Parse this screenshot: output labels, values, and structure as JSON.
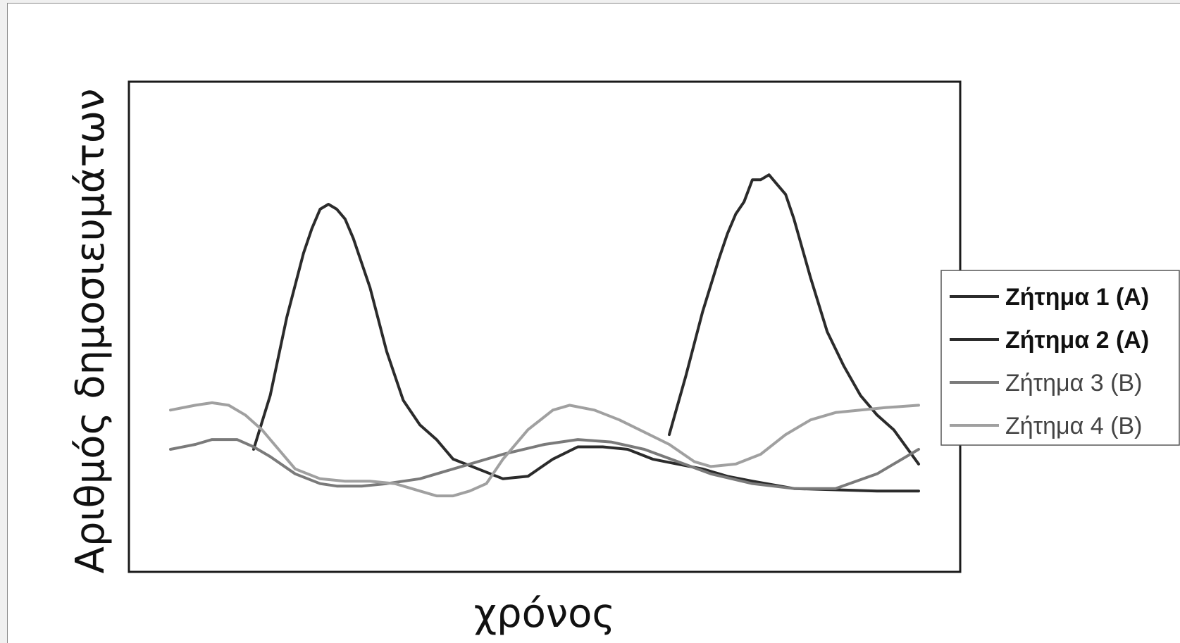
{
  "chart_data": {
    "type": "line",
    "title": "",
    "xlabel": "χρόνος",
    "ylabel": "Αριθμός δημοσιευμάτων",
    "xlim": [
      0,
      100
    ],
    "ylim": [
      0,
      100
    ],
    "grid": false,
    "legend_position": "right",
    "series": [
      {
        "name": "Ζήτημα 1 (A)",
        "color": "#2b2b2b",
        "points": [
          [
            15,
            25
          ],
          [
            17,
            36
          ],
          [
            19,
            52
          ],
          [
            21,
            65
          ],
          [
            22,
            70
          ],
          [
            23,
            74
          ],
          [
            24,
            75
          ],
          [
            25,
            74
          ],
          [
            26,
            72
          ],
          [
            27,
            68
          ],
          [
            29,
            58
          ],
          [
            31,
            45
          ],
          [
            33,
            35
          ],
          [
            35,
            30
          ],
          [
            37,
            27
          ],
          [
            39,
            23
          ],
          [
            42,
            21
          ],
          [
            45,
            19
          ],
          [
            48,
            19.5
          ],
          [
            51,
            23
          ],
          [
            54,
            25.5
          ],
          [
            57,
            25.5
          ],
          [
            60,
            25
          ],
          [
            63,
            23
          ],
          [
            66,
            22
          ],
          [
            69,
            21
          ],
          [
            72,
            19.5
          ],
          [
            75,
            18.5
          ],
          [
            80,
            17
          ],
          [
            90,
            16.5
          ],
          [
            95,
            16.5
          ]
        ]
      },
      {
        "name": "Ζήτημα 2 (A)",
        "color": "#2b2b2b",
        "points": [
          [
            65,
            28
          ],
          [
            67,
            40
          ],
          [
            69,
            53
          ],
          [
            71,
            64
          ],
          [
            72,
            69
          ],
          [
            73,
            73
          ],
          [
            74,
            75.5
          ],
          [
            75,
            80
          ],
          [
            76,
            80
          ],
          [
            77,
            81
          ],
          [
            78,
            79
          ],
          [
            79,
            77
          ],
          [
            80,
            72
          ],
          [
            82,
            60
          ],
          [
            84,
            49
          ],
          [
            86,
            42
          ],
          [
            88,
            36
          ],
          [
            90,
            32
          ],
          [
            92,
            29
          ],
          [
            95,
            22
          ]
        ]
      },
      {
        "name": "Ζήτημα 3 (B)",
        "color": "#7a7a7a",
        "points": [
          [
            5,
            25
          ],
          [
            8,
            26
          ],
          [
            10,
            27
          ],
          [
            13,
            27
          ],
          [
            15,
            25.5
          ],
          [
            17,
            23.5
          ],
          [
            20,
            20
          ],
          [
            23,
            18
          ],
          [
            25,
            17.5
          ],
          [
            28,
            17.5
          ],
          [
            31,
            18
          ],
          [
            35,
            19
          ],
          [
            40,
            21.5
          ],
          [
            45,
            24
          ],
          [
            50,
            26
          ],
          [
            54,
            27
          ],
          [
            58,
            26.5
          ],
          [
            62,
            25
          ],
          [
            66,
            22.5
          ],
          [
            70,
            20
          ],
          [
            75,
            18
          ],
          [
            80,
            17
          ],
          [
            85,
            17
          ],
          [
            90,
            20
          ],
          [
            95,
            25
          ]
        ]
      },
      {
        "name": "Ζήτημα 4 (B)",
        "color": "#a0a0a0",
        "points": [
          [
            5,
            33
          ],
          [
            8,
            34
          ],
          [
            10,
            34.5
          ],
          [
            12,
            34
          ],
          [
            14,
            32
          ],
          [
            16,
            29
          ],
          [
            18,
            25
          ],
          [
            20,
            21
          ],
          [
            23,
            19
          ],
          [
            26,
            18.5
          ],
          [
            29,
            18.5
          ],
          [
            32,
            18
          ],
          [
            35,
            16.5
          ],
          [
            37,
            15.5
          ],
          [
            39,
            15.5
          ],
          [
            41,
            16.5
          ],
          [
            43,
            18
          ],
          [
            45,
            23
          ],
          [
            48,
            29
          ],
          [
            51,
            33
          ],
          [
            53,
            34
          ],
          [
            56,
            33
          ],
          [
            59,
            31
          ],
          [
            62,
            28.5
          ],
          [
            65,
            26
          ],
          [
            68,
            22.5
          ],
          [
            70,
            21.5
          ],
          [
            73,
            22
          ],
          [
            76,
            24
          ],
          [
            79,
            28
          ],
          [
            82,
            31
          ],
          [
            85,
            32.5
          ],
          [
            88,
            33
          ],
          [
            91,
            33.5
          ],
          [
            95,
            34
          ]
        ]
      }
    ]
  }
}
